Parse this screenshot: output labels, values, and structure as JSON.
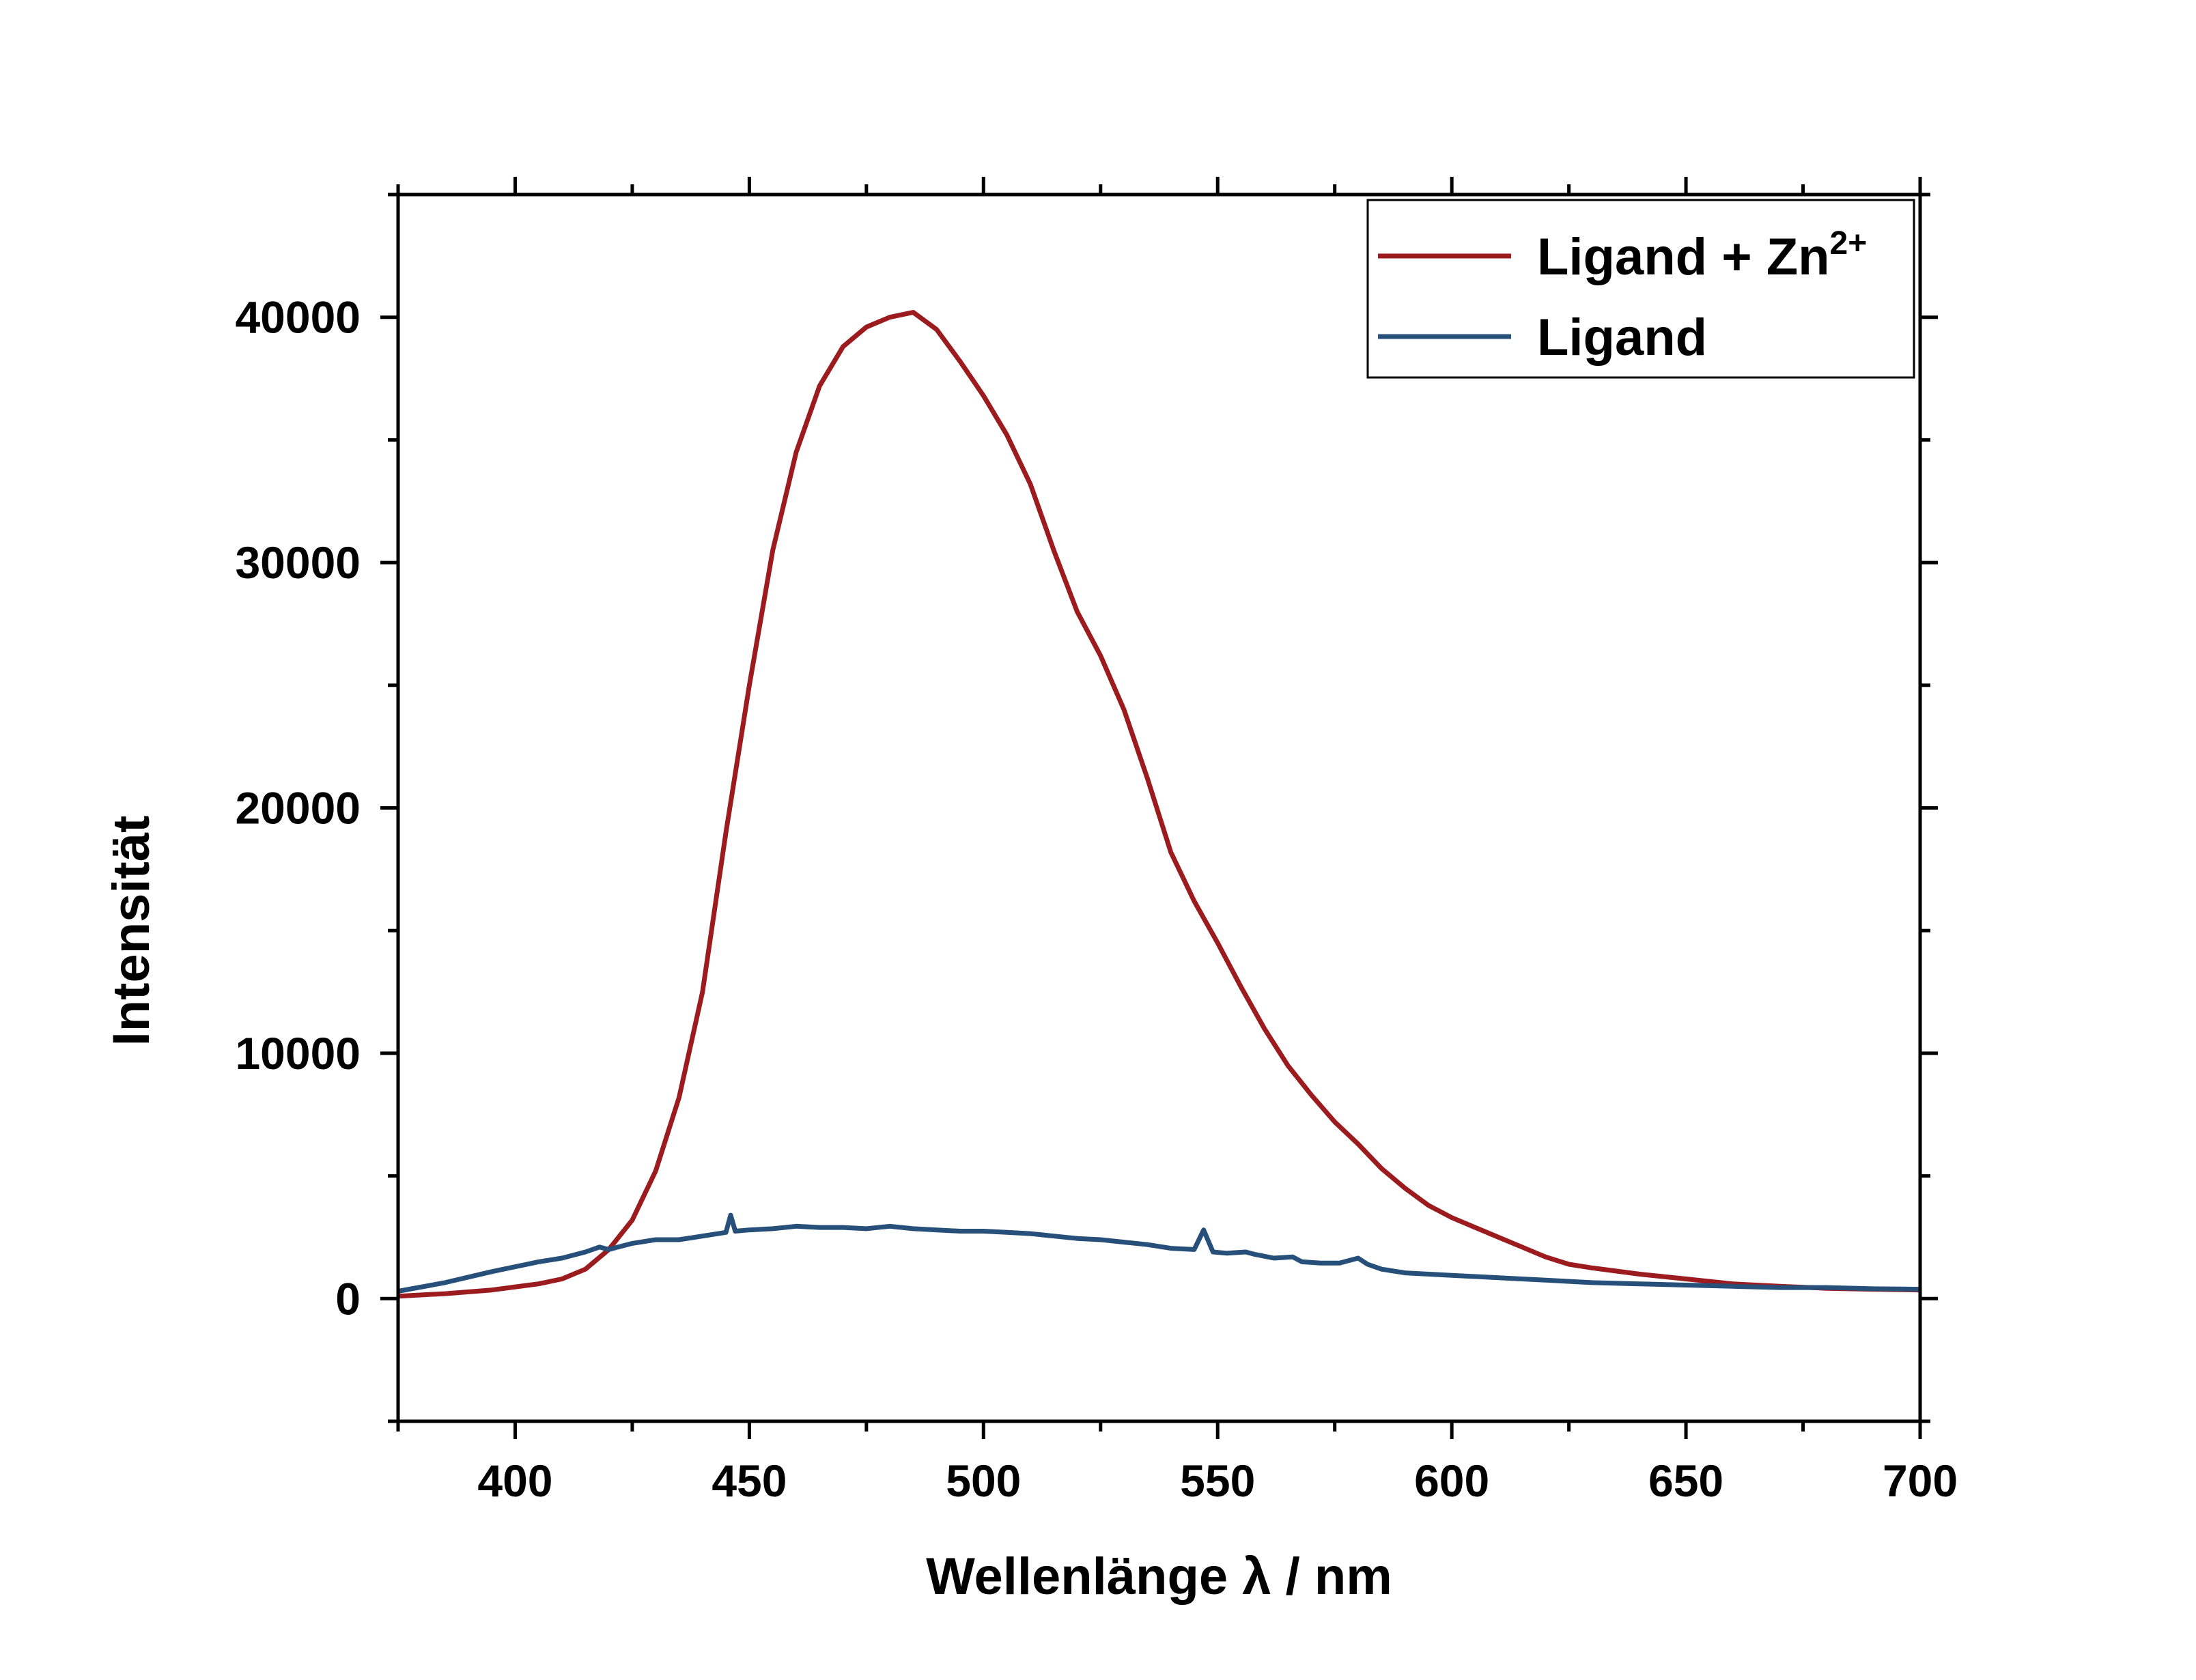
{
  "chart_data": {
    "type": "line",
    "xlabel": "Wellenlänge λ / nm",
    "ylabel": "Intensität",
    "xlim": [
      375,
      700
    ],
    "ylim": [
      -5000,
      45000
    ],
    "xticks": [
      400,
      450,
      500,
      550,
      600,
      650,
      700
    ],
    "yticks": [
      0,
      10000,
      20000,
      30000,
      40000
    ],
    "xminor_step": 25,
    "yminor_step": 5000,
    "grid": false,
    "legend_position": "top-right",
    "series": [
      {
        "name": "Ligand + Zn",
        "name_superscript": "2+",
        "color": "#9b1b1e",
        "points": [
          [
            375,
            100
          ],
          [
            385,
            200
          ],
          [
            395,
            350
          ],
          [
            405,
            600
          ],
          [
            410,
            800
          ],
          [
            415,
            1200
          ],
          [
            420,
            2000
          ],
          [
            425,
            3200
          ],
          [
            430,
            5200
          ],
          [
            435,
            8200
          ],
          [
            440,
            12500
          ],
          [
            445,
            19000
          ],
          [
            450,
            25000
          ],
          [
            455,
            30500
          ],
          [
            460,
            34500
          ],
          [
            465,
            37200
          ],
          [
            470,
            38800
          ],
          [
            475,
            39600
          ],
          [
            480,
            40000
          ],
          [
            485,
            40200
          ],
          [
            490,
            39500
          ],
          [
            495,
            38200
          ],
          [
            500,
            36800
          ],
          [
            505,
            35200
          ],
          [
            510,
            33200
          ],
          [
            515,
            30500
          ],
          [
            520,
            28000
          ],
          [
            525,
            26200
          ],
          [
            530,
            24000
          ],
          [
            535,
            21200
          ],
          [
            540,
            18200
          ],
          [
            545,
            16200
          ],
          [
            550,
            14500
          ],
          [
            555,
            12700
          ],
          [
            560,
            11000
          ],
          [
            565,
            9500
          ],
          [
            570,
            8300
          ],
          [
            575,
            7200
          ],
          [
            580,
            6300
          ],
          [
            585,
            5300
          ],
          [
            590,
            4500
          ],
          [
            595,
            3800
          ],
          [
            600,
            3300
          ],
          [
            605,
            2900
          ],
          [
            610,
            2500
          ],
          [
            615,
            2100
          ],
          [
            620,
            1700
          ],
          [
            625,
            1400
          ],
          [
            630,
            1250
          ],
          [
            640,
            1000
          ],
          [
            650,
            800
          ],
          [
            660,
            600
          ],
          [
            670,
            500
          ],
          [
            680,
            420
          ],
          [
            690,
            380
          ],
          [
            700,
            350
          ]
        ]
      },
      {
        "name": "Ligand",
        "color": "#26507a",
        "points": [
          [
            375,
            300
          ],
          [
            385,
            650
          ],
          [
            395,
            1100
          ],
          [
            405,
            1500
          ],
          [
            410,
            1650
          ],
          [
            415,
            1900
          ],
          [
            418,
            2100
          ],
          [
            420,
            2000
          ],
          [
            425,
            2250
          ],
          [
            430,
            2400
          ],
          [
            435,
            2400
          ],
          [
            440,
            2550
          ],
          [
            445,
            2700
          ],
          [
            446,
            3400
          ],
          [
            447,
            2750
          ],
          [
            450,
            2800
          ],
          [
            455,
            2850
          ],
          [
            460,
            2950
          ],
          [
            465,
            2900
          ],
          [
            470,
            2900
          ],
          [
            475,
            2850
          ],
          [
            480,
            2950
          ],
          [
            485,
            2850
          ],
          [
            490,
            2800
          ],
          [
            495,
            2750
          ],
          [
            500,
            2750
          ],
          [
            505,
            2700
          ],
          [
            510,
            2650
          ],
          [
            515,
            2550
          ],
          [
            520,
            2450
          ],
          [
            525,
            2400
          ],
          [
            530,
            2300
          ],
          [
            535,
            2200
          ],
          [
            540,
            2050
          ],
          [
            545,
            2000
          ],
          [
            547,
            2800
          ],
          [
            549,
            1900
          ],
          [
            552,
            1850
          ],
          [
            556,
            1900
          ],
          [
            558,
            1800
          ],
          [
            562,
            1650
          ],
          [
            566,
            1700
          ],
          [
            568,
            1500
          ],
          [
            572,
            1450
          ],
          [
            576,
            1450
          ],
          [
            580,
            1650
          ],
          [
            582,
            1400
          ],
          [
            585,
            1200
          ],
          [
            590,
            1050
          ],
          [
            600,
            950
          ],
          [
            610,
            850
          ],
          [
            620,
            750
          ],
          [
            630,
            650
          ],
          [
            640,
            600
          ],
          [
            650,
            550
          ],
          [
            660,
            500
          ],
          [
            670,
            450
          ],
          [
            680,
            450
          ],
          [
            690,
            400
          ],
          [
            700,
            380
          ]
        ]
      }
    ]
  }
}
